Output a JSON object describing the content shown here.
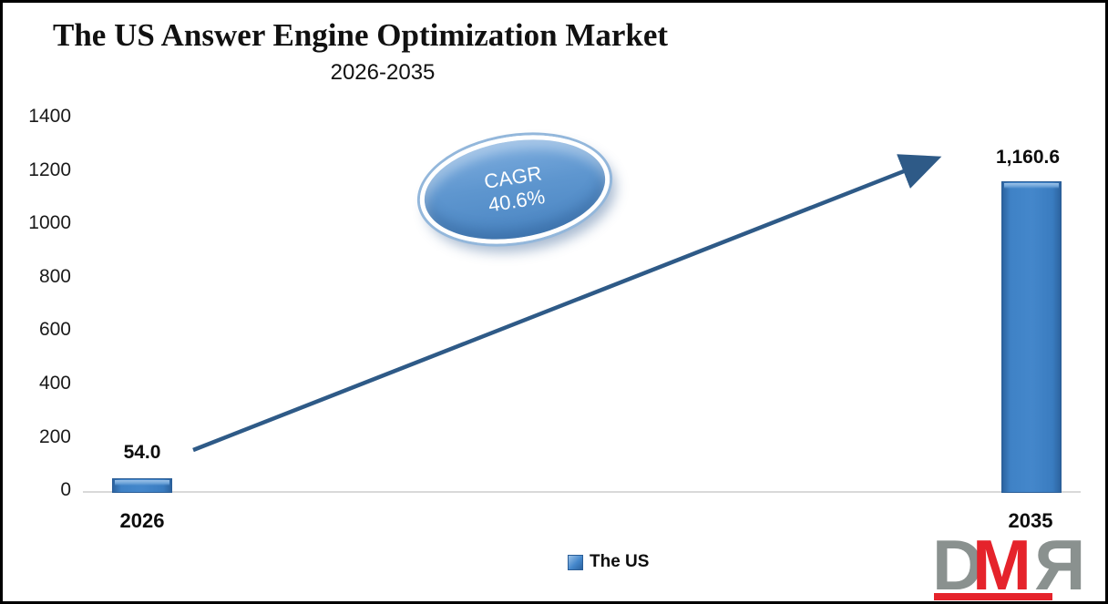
{
  "header": {
    "title": "The US Answer Engine Optimization Market",
    "subtitle": "2026-2035"
  },
  "chart_data": {
    "type": "bar",
    "title": "The US Answer Engine Optimization Market",
    "subtitle": "2026-2035",
    "categories": [
      "2026",
      "2035"
    ],
    "series": [
      {
        "name": "The US",
        "values": [
          54.0,
          1160.6
        ]
      }
    ],
    "value_labels": [
      "54.0",
      "1,160.6"
    ],
    "xlabel": "",
    "ylabel": "",
    "ylim": [
      0,
      1400
    ],
    "yticks": [
      0,
      200,
      400,
      600,
      800,
      1000,
      1200,
      1400
    ],
    "ytick_labels": [
      "0",
      "200",
      "400",
      "600",
      "800",
      "1000",
      "1200",
      "1400"
    ],
    "grid": false,
    "legend": {
      "position": "bottom",
      "entries": [
        "The US"
      ]
    },
    "annotation": {
      "line1": "CAGR",
      "line2": "40.6%",
      "text": "CAGR 40.6%"
    },
    "colors": {
      "bar": "#3f82c6",
      "bar_edge": "#2a5d96",
      "arrow": "#2e5a87",
      "ellipse_fill": "#5e96cf",
      "axis_line": "#d9d9d9",
      "text": "#0d0d0d"
    }
  },
  "logo": {
    "d": "D",
    "m": "M",
    "r": "R",
    "color_gray": "#8a918f",
    "color_red": "#e5232b"
  }
}
